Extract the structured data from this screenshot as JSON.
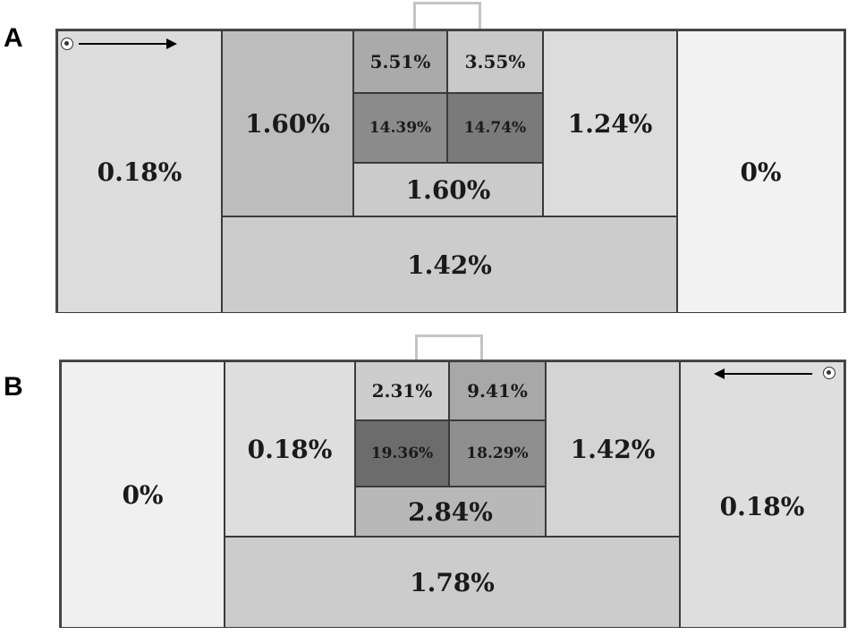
{
  "panels": {
    "a": {
      "label": "A",
      "zones": {
        "left_wide": "0.18%",
        "left_box": "1.60%",
        "top_left": "5.51%",
        "top_right": "3.55%",
        "center_left": "14.39%",
        "center_right": "14.74%",
        "right_box": "1.24%",
        "lower_center": "1.60%",
        "right_wide": "0%",
        "bottom": "1.42%"
      }
    },
    "b": {
      "label": "B",
      "zones": {
        "left_wide": "0%",
        "left_box": "0.18%",
        "top_left": "2.31%",
        "top_right": "9.41%",
        "center_left": "19.36%",
        "center_right": "18.29%",
        "right_box": "1.42%",
        "lower_center": "2.84%",
        "right_wide": "0.18%",
        "bottom": "1.78%"
      }
    }
  },
  "colors": {
    "lightest": "#f0f0f0",
    "light": "#dedede",
    "mid_light": "#cdcdcd",
    "mid": "#b5b5b5",
    "mid_dark": "#9a9a9a",
    "dark": "#7a7a7a",
    "darkest": "#6c6c6c"
  },
  "icons": [
    "soccer-ball-icon",
    "arrow-right-icon",
    "arrow-left-icon"
  ]
}
